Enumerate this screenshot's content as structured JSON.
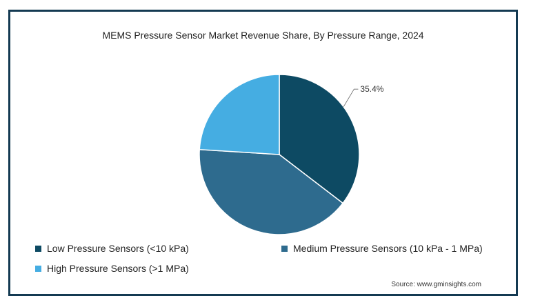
{
  "chart_data": {
    "type": "pie",
    "title": "MEMS Pressure Sensor Market Revenue Share, By Pressure Range, 2024",
    "slices": [
      {
        "label": "Low Pressure Sensors (<10 kPa)",
        "value": 35.4,
        "color": "#0d4a63",
        "data_label": "35.4%"
      },
      {
        "label": "Medium Pressure Sensors (10 kPa - 1 MPa)",
        "value": 40.6,
        "color": "#2e6b8e",
        "data_label": ""
      },
      {
        "label": "High Pressure Sensors (>1 MPa)",
        "value": 24.0,
        "color": "#45ade2",
        "data_label": ""
      }
    ],
    "start_angle_deg": 0,
    "direction": "clockwise",
    "legend_position": "bottom"
  },
  "source": "Source: www.gminsights.com"
}
